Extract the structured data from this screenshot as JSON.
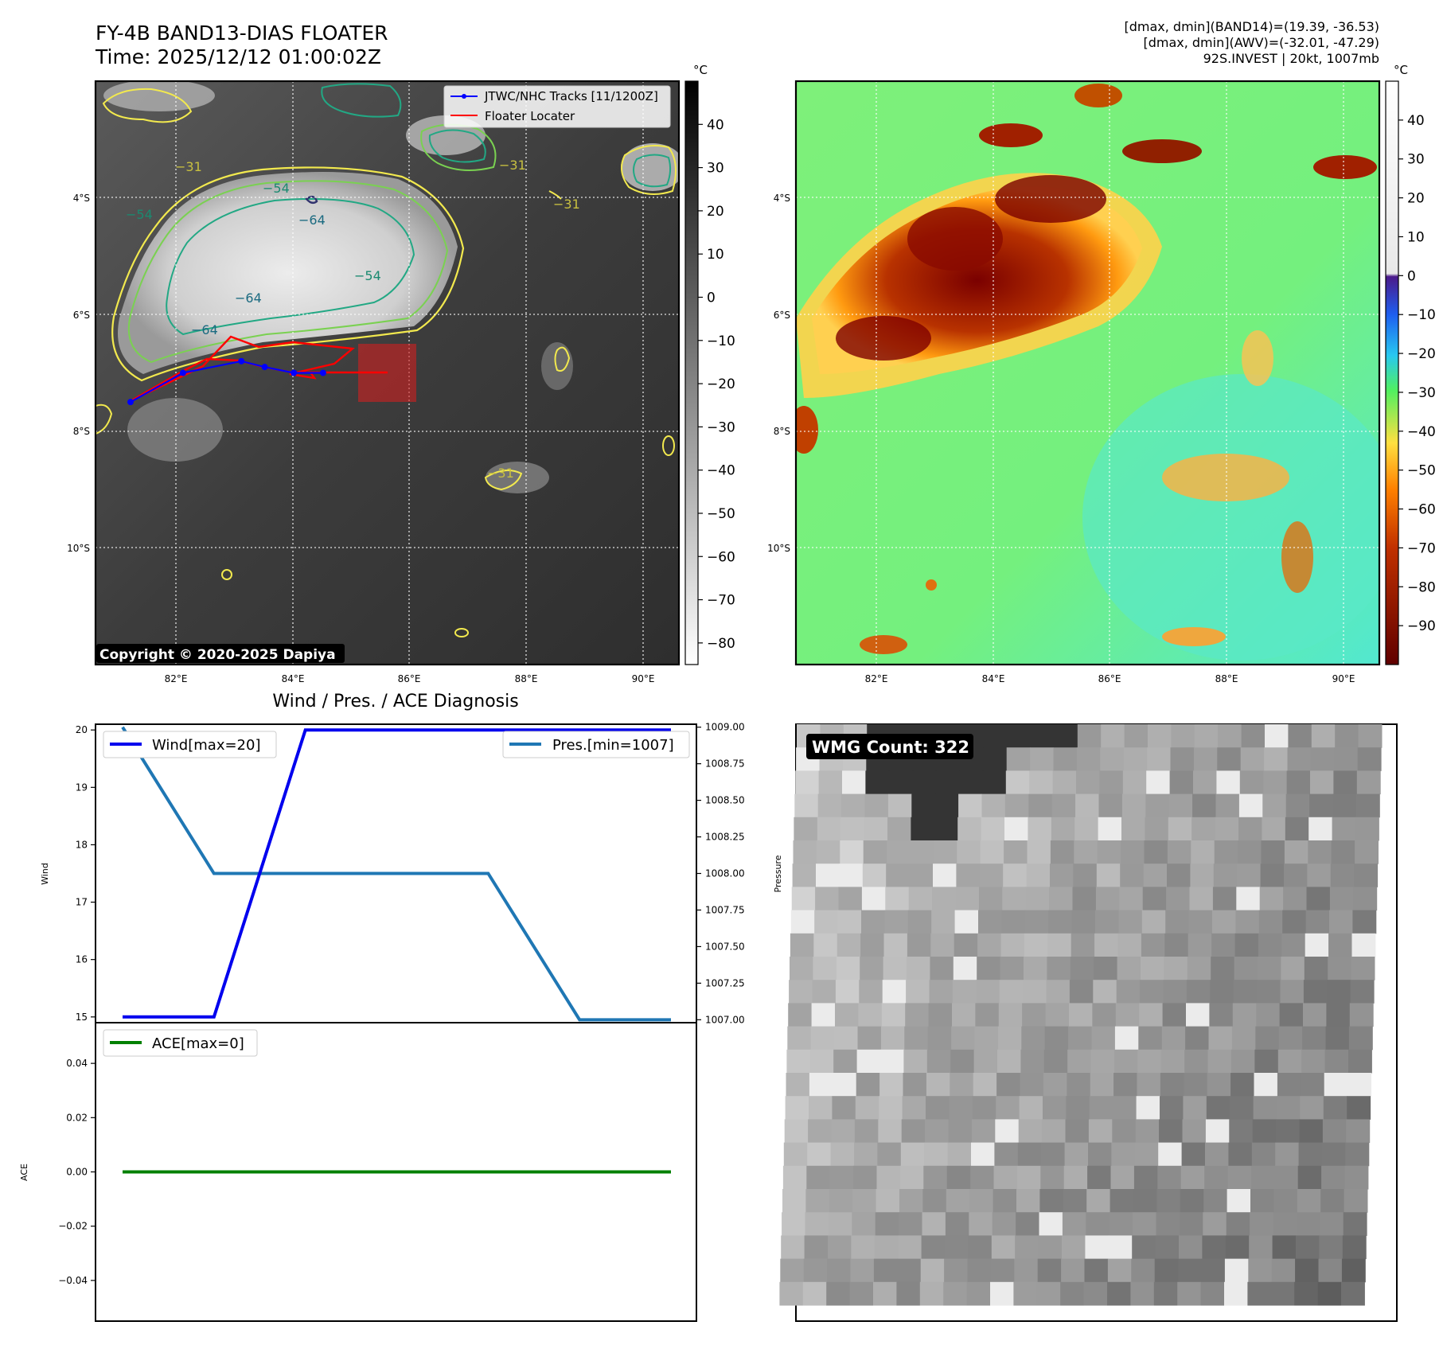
{
  "header": {
    "title_line1": "FY-4B BAND13-DIAS FLOATER",
    "title_line2": "Time: 2025/12/12 01:00:02Z",
    "info_line1": "[dmax, dmin](BAND14)=(19.39, -36.53)",
    "info_line2": "[dmax, dmin](AWV)=(-32.01, -47.29)",
    "info_line3": "92S.INVEST | 20kt, 1007mb"
  },
  "map": {
    "lon_ticks": [
      "82°E",
      "84°E",
      "86°E",
      "88°E",
      "90°E"
    ],
    "lat_ticks": [
      "4°S",
      "6°S",
      "8°S",
      "10°S"
    ],
    "colorbar_unit": "°C",
    "left_colorbar_ticks": [
      "40",
      "30",
      "20",
      "10",
      "0",
      "−10",
      "−20",
      "−30",
      "−40",
      "−50",
      "−60",
      "−70",
      "−80"
    ],
    "right_colorbar_ticks": [
      "40",
      "30",
      "20",
      "10",
      "0",
      "−10",
      "−20",
      "−30",
      "−40",
      "−50",
      "−60",
      "−70",
      "−80",
      "−90"
    ],
    "legend_tracks": "JTWC/NHC Tracks [11/1200Z]",
    "legend_floater": "Floater Locater",
    "copyright": "Copyright © 2020-2025 Dapiya",
    "contour_labels": [
      "−31",
      "−31",
      "−31",
      "−54",
      "−54",
      "−64",
      "−64",
      "−64",
      "−54",
      "−31"
    ],
    "colors": {
      "track": "#0000ff",
      "floater": "#ff0000",
      "contour_yellow": "#f2e94e",
      "contour_green": "#7ad151",
      "contour_teal": "#22a884"
    }
  },
  "diagnosis": {
    "title": "Wind / Pres. / ACE Diagnosis",
    "wind_ylabel": "Wind",
    "pres_ylabel": "Pressure",
    "ace_ylabel": "ACE",
    "legend_wind": "Wind[max=20]",
    "legend_pres": "Pres.[min=1007]",
    "legend_ace": "ACE[max=0]",
    "wind_ticks": [
      "20",
      "19",
      "18",
      "17",
      "16",
      "15"
    ],
    "pres_ticks": [
      "1009.00",
      "1008.75",
      "1008.50",
      "1008.25",
      "1008.00",
      "1007.75",
      "1007.50",
      "1007.25",
      "1007.00"
    ],
    "ace_ticks": [
      "0.04",
      "0.02",
      "0.00",
      "−0.02",
      "−0.04"
    ]
  },
  "wmg": {
    "label": "WMG Count: 322"
  },
  "chart_data": [
    {
      "type": "line",
      "title": "Wind / Pres. / ACE Diagnosis",
      "x": [
        0,
        1,
        2,
        3,
        4,
        5,
        6
      ],
      "series": [
        {
          "name": "Wind[max=20]",
          "axis": "left",
          "color": "#0000ee",
          "values": [
            15,
            15,
            20,
            20,
            20,
            20,
            20
          ]
        },
        {
          "name": "Pres.[min=1007]",
          "axis": "right",
          "color": "#1f77b4",
          "values": [
            1009,
            1008,
            1008,
            1008,
            1008,
            1007,
            1007
          ]
        }
      ],
      "ylabel": "Wind",
      "ylim": [
        14.9,
        20.1
      ],
      "y2label": "Pressure",
      "y2lim": [
        1006.98,
        1009.02
      ]
    },
    {
      "type": "line",
      "x": [
        0,
        1,
        2,
        3,
        4,
        5,
        6
      ],
      "series": [
        {
          "name": "ACE[max=0]",
          "color": "#008000",
          "values": [
            0,
            0,
            0,
            0,
            0,
            0,
            0
          ]
        }
      ],
      "ylabel": "ACE",
      "ylim": [
        -0.055,
        0.055
      ]
    },
    {
      "type": "line",
      "title": "JTWC/NHC Tracks [11/1200Z]",
      "x_unit": "°E",
      "y_unit": "°S",
      "series": [
        {
          "name": "JTWC/NHC Tracks [11/1200Z]",
          "lon": [
            81.2,
            82.1,
            83.1,
            83.5,
            84.0,
            84.5
          ],
          "lat": [
            -7.5,
            -7.0,
            -6.8,
            -6.9,
            -7.0,
            -7.0
          ]
        }
      ],
      "xlim": [
        80.6,
        90.6
      ],
      "ylim": [
        -12.0,
        -2.0
      ]
    }
  ]
}
